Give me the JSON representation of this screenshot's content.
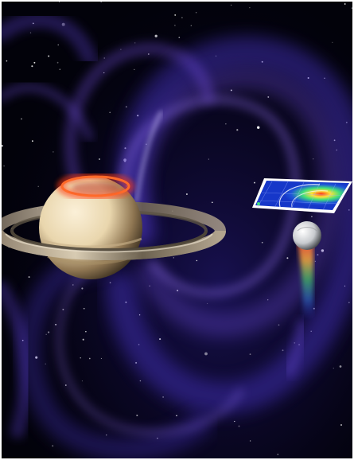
{
  "scene": {
    "subject": "saturn-magnetosphere-illustration",
    "elements": [
      "saturn",
      "rings",
      "polar-aurora",
      "magnetic-field-lines",
      "moon",
      "data-panel",
      "starfield"
    ]
  },
  "colors": {
    "space": "#02020a",
    "field_purple": "#6a4bd6",
    "field_blue": "#2b2fb8",
    "aurora_red": "#ff3a10",
    "saturn_light": "#f3e3c4",
    "saturn_shadow": "#3a2f20",
    "moon_grey": "#cfd2d6",
    "panel_blue": "#1637c9",
    "panel_green": "#3fe07a",
    "panel_yellow": "#ffe23a",
    "panel_red": "#ff3a1a",
    "plume_rainbow": [
      "#ff4b3a",
      "#ffb23a",
      "#48e06a",
      "#3a8cff"
    ]
  }
}
